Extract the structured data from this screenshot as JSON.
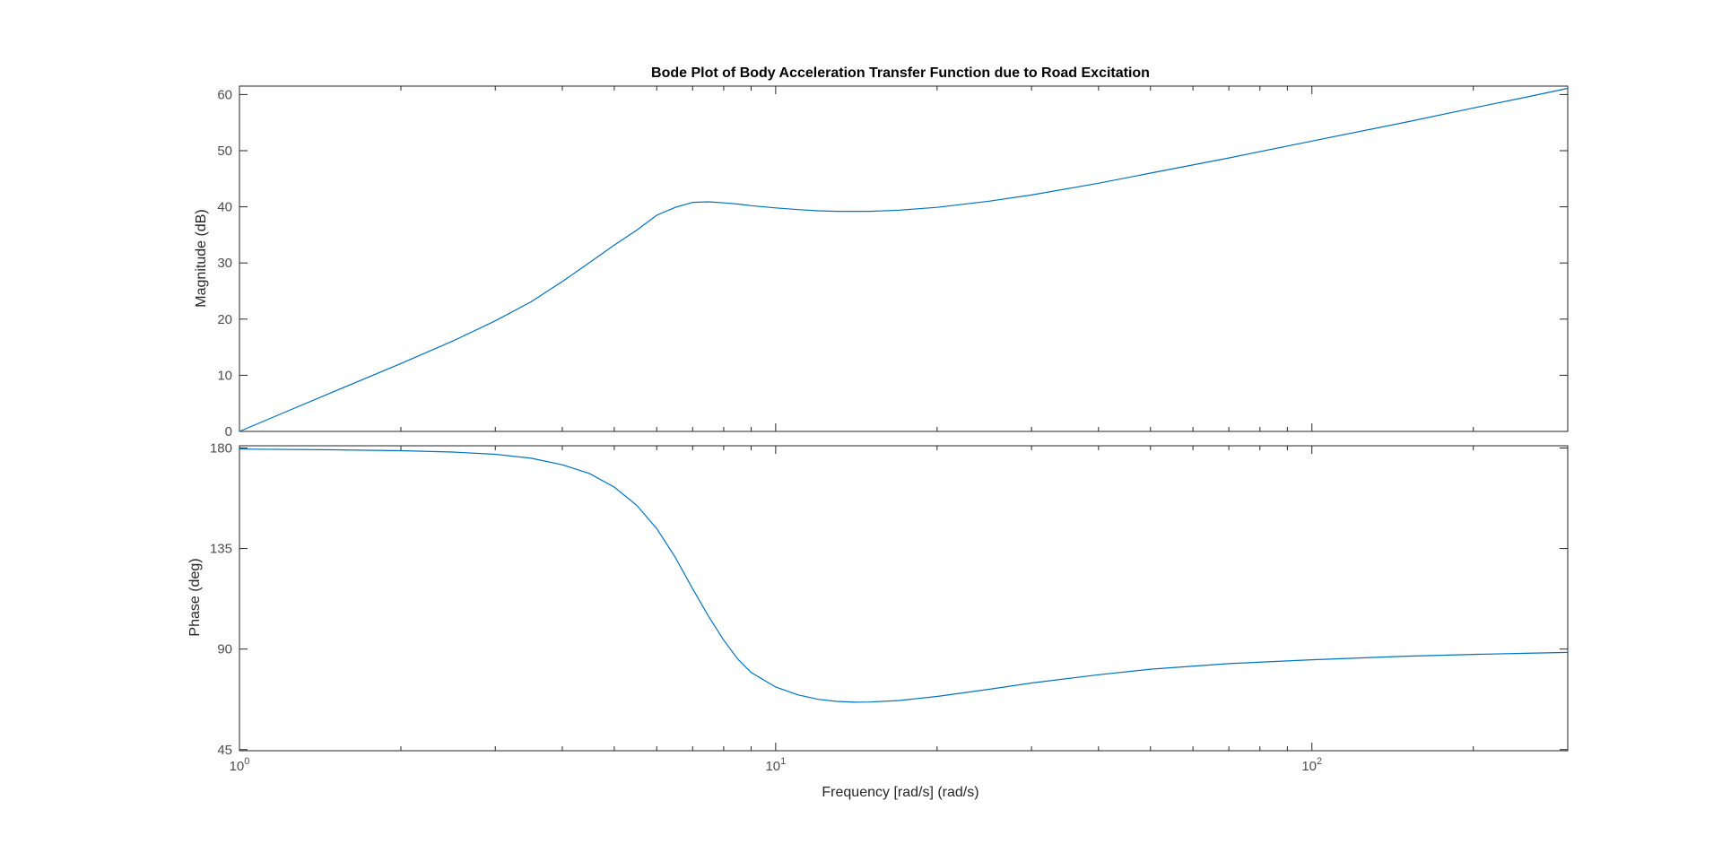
{
  "chart_data": [
    {
      "type": "line",
      "title": "Bode Plot of Body Acceleration Transfer Function due to Road Excitation",
      "ylabel": "Magnitude (dB)",
      "xscale": "log",
      "xlim": [
        1,
        300
      ],
      "ylim": [
        0,
        61.5
      ],
      "yticks": [
        0,
        10,
        20,
        30,
        40,
        50,
        60
      ],
      "grid": false,
      "line_color": "#0072BD",
      "series": [
        {
          "x": [
            1,
            1.2,
            1.5,
            2,
            2.5,
            3,
            3.5,
            4,
            4.5,
            5,
            5.5,
            6,
            6.5,
            7,
            7.5,
            8,
            8.5,
            9,
            10,
            11,
            12,
            13,
            14,
            15,
            17,
            20,
            25,
            30,
            40,
            50,
            70,
            100,
            150,
            200,
            250,
            300
          ],
          "y": [
            0,
            3.2,
            7.1,
            12.1,
            16.1,
            19.7,
            23.1,
            26.7,
            30.1,
            33.2,
            35.8,
            38.5,
            39.9,
            40.8,
            40.9,
            40.7,
            40.5,
            40.2,
            39.8,
            39.5,
            39.3,
            39.2,
            39.2,
            39.2,
            39.4,
            39.9,
            41.0,
            42.1,
            44.2,
            46.0,
            48.7,
            51.7,
            55.1,
            57.6,
            59.5,
            61.1
          ]
        }
      ]
    },
    {
      "type": "line",
      "ylabel": "Phase (deg)",
      "xlabel": "Frequency [rad/s]  (rad/s)",
      "xscale": "log",
      "xlim": [
        1,
        300
      ],
      "ylim": [
        44.5,
        181
      ],
      "yticks": [
        45,
        90,
        135,
        180
      ],
      "xticks": [
        {
          "value": 1,
          "base": "10",
          "exp": "0"
        },
        {
          "value": 10,
          "base": "10",
          "exp": "1"
        },
        {
          "value": 100,
          "base": "10",
          "exp": "2"
        }
      ],
      "grid": false,
      "line_color": "#0072BD",
      "series": [
        {
          "x": [
            1,
            1.5,
            2,
            2.5,
            3,
            3.5,
            4,
            4.5,
            5,
            5.5,
            6,
            6.5,
            7,
            7.5,
            8,
            8.5,
            9,
            10,
            11,
            12,
            13,
            14,
            15,
            17,
            20,
            25,
            30,
            40,
            50,
            70,
            100,
            150,
            200,
            250,
            300
          ],
          "y": [
            179.5,
            179.2,
            178.8,
            178.2,
            177.2,
            175.4,
            172.5,
            168.5,
            162.5,
            154.5,
            144,
            131,
            117,
            104.5,
            94,
            85.5,
            79.5,
            73,
            69.5,
            67.5,
            66.6,
            66.2,
            66.3,
            67.0,
            68.8,
            72.0,
            74.8,
            78.5,
            81.0,
            83.5,
            85.2,
            86.8,
            87.6,
            88.1,
            88.5
          ]
        }
      ]
    }
  ]
}
